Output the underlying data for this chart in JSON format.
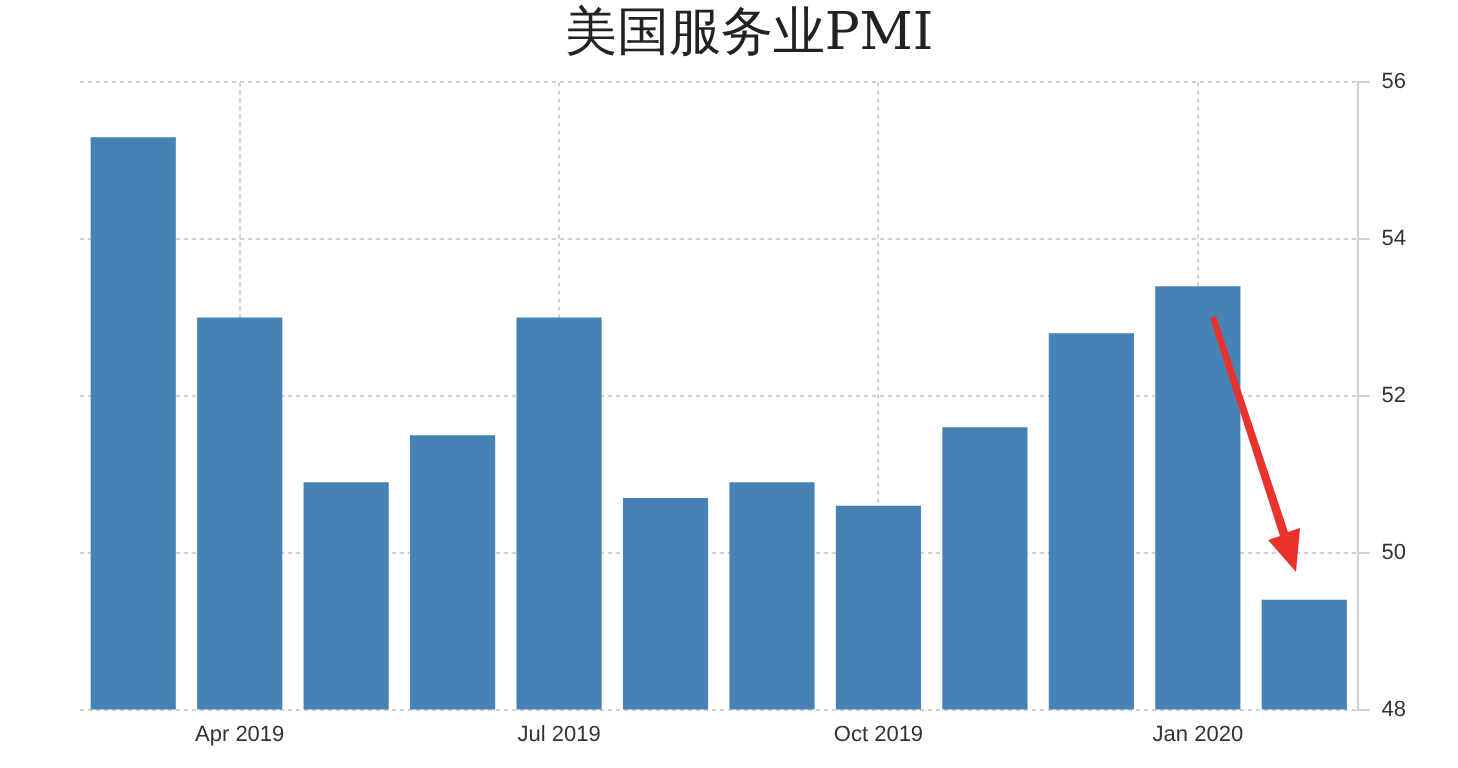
{
  "chart_data": {
    "type": "bar",
    "title": "美国服务业PMI",
    "categories": [
      null,
      "Apr 2019",
      null,
      null,
      "Jul 2019",
      null,
      null,
      "Oct 2019",
      null,
      null,
      "Jan 2020",
      null
    ],
    "values": [
      55.3,
      53.0,
      50.9,
      51.5,
      53.0,
      50.7,
      50.9,
      50.6,
      51.6,
      52.8,
      53.4,
      49.4
    ],
    "color": "#4682b4",
    "ylim": [
      48,
      56
    ],
    "yticks": [
      48,
      50,
      52,
      54,
      56
    ],
    "grid": true
  }
}
